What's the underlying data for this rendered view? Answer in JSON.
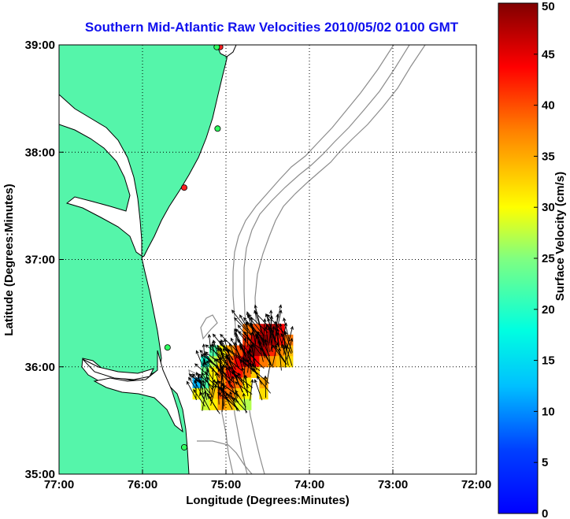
{
  "chart_data": {
    "type": "heatmap",
    "title": "Southern Mid-Atlantic Raw Velocities 2010/05/02 0100 GMT",
    "xlabel": "Longitude (Degrees:Minutes)",
    "ylabel": "Latitude (Degrees:Minutes)",
    "x_ticks": [
      "77:00",
      "76:00",
      "75:00",
      "74:00",
      "73:00",
      "72:00"
    ],
    "y_ticks": [
      "39:00",
      "38:00",
      "37:00",
      "36:00",
      "35:00"
    ],
    "xlim": [
      -77,
      -72
    ],
    "ylim": [
      35,
      39
    ],
    "grid": true,
    "colorbar": {
      "label": "Surface Velocity (cm/s)",
      "ticks": [
        "0",
        "5",
        "10",
        "15",
        "20",
        "25",
        "30",
        "35",
        "40",
        "45",
        "50"
      ],
      "range": [
        0,
        50
      ]
    },
    "colors": {
      "land": "#55f5aa",
      "contour": "#8c8c8c",
      "title": "#1010ee"
    },
    "stations": [
      {
        "lon": -75.07,
        "lat": 38.98,
        "color": "#ff2020"
      },
      {
        "lon": -75.11,
        "lat": 38.98,
        "color": "#30ff60"
      },
      {
        "lon": -75.1,
        "lat": 38.22,
        "color": "#30ff60"
      },
      {
        "lon": -75.5,
        "lat": 37.67,
        "color": "#ff2020"
      },
      {
        "lon": -75.7,
        "lat": 36.18,
        "color": "#30ff60"
      },
      {
        "lon": -75.5,
        "lat": 35.25,
        "color": "#30ff60"
      }
    ],
    "velocity_cells": [
      {
        "lon": -74.55,
        "lat": 36.35,
        "speed": 46
      },
      {
        "lon": -74.45,
        "lat": 36.35,
        "speed": 48
      },
      {
        "lon": -74.35,
        "lat": 36.35,
        "speed": 44
      },
      {
        "lon": -74.65,
        "lat": 36.35,
        "speed": 40
      },
      {
        "lon": -74.75,
        "lat": 36.35,
        "speed": 38
      },
      {
        "lon": -74.75,
        "lat": 36.25,
        "speed": 41
      },
      {
        "lon": -74.65,
        "lat": 36.25,
        "speed": 47
      },
      {
        "lon": -74.55,
        "lat": 36.25,
        "speed": 50
      },
      {
        "lon": -74.45,
        "lat": 36.25,
        "speed": 48
      },
      {
        "lon": -74.35,
        "lat": 36.25,
        "speed": 43
      },
      {
        "lon": -74.25,
        "lat": 36.25,
        "speed": 38
      },
      {
        "lon": -75.15,
        "lat": 36.15,
        "speed": 22
      },
      {
        "lon": -75.05,
        "lat": 36.15,
        "speed": 30
      },
      {
        "lon": -74.95,
        "lat": 36.15,
        "speed": 36
      },
      {
        "lon": -74.85,
        "lat": 36.15,
        "speed": 40
      },
      {
        "lon": -74.75,
        "lat": 36.15,
        "speed": 46
      },
      {
        "lon": -74.65,
        "lat": 36.15,
        "speed": 49
      },
      {
        "lon": -74.55,
        "lat": 36.15,
        "speed": 47
      },
      {
        "lon": -74.45,
        "lat": 36.15,
        "speed": 42
      },
      {
        "lon": -74.35,
        "lat": 36.15,
        "speed": 37
      },
      {
        "lon": -74.25,
        "lat": 36.15,
        "speed": 34
      },
      {
        "lon": -75.25,
        "lat": 36.05,
        "speed": 19
      },
      {
        "lon": -75.15,
        "lat": 36.05,
        "speed": 27
      },
      {
        "lon": -75.05,
        "lat": 36.05,
        "speed": 33
      },
      {
        "lon": -74.95,
        "lat": 36.05,
        "speed": 40
      },
      {
        "lon": -74.85,
        "lat": 36.05,
        "speed": 45
      },
      {
        "lon": -74.75,
        "lat": 36.05,
        "speed": 48
      },
      {
        "lon": -74.65,
        "lat": 36.05,
        "speed": 44
      },
      {
        "lon": -74.55,
        "lat": 36.05,
        "speed": 38
      },
      {
        "lon": -74.45,
        "lat": 36.05,
        "speed": 36
      },
      {
        "lon": -74.35,
        "lat": 36.05,
        "speed": 34
      },
      {
        "lon": -74.25,
        "lat": 36.05,
        "speed": 32
      },
      {
        "lon": -75.25,
        "lat": 35.95,
        "speed": 24
      },
      {
        "lon": -75.15,
        "lat": 35.95,
        "speed": 31
      },
      {
        "lon": -75.05,
        "lat": 35.95,
        "speed": 38
      },
      {
        "lon": -74.95,
        "lat": 35.95,
        "speed": 44
      },
      {
        "lon": -74.85,
        "lat": 35.95,
        "speed": 43
      },
      {
        "lon": -74.75,
        "lat": 35.95,
        "speed": 39
      },
      {
        "lon": -74.65,
        "lat": 35.95,
        "speed": 33
      },
      {
        "lon": -75.35,
        "lat": 35.85,
        "speed": 12
      },
      {
        "lon": -75.25,
        "lat": 35.85,
        "speed": 22
      },
      {
        "lon": -75.15,
        "lat": 35.85,
        "speed": 30
      },
      {
        "lon": -75.05,
        "lat": 35.85,
        "speed": 37
      },
      {
        "lon": -74.95,
        "lat": 35.85,
        "speed": 41
      },
      {
        "lon": -74.85,
        "lat": 35.85,
        "speed": 38
      },
      {
        "lon": -74.75,
        "lat": 35.85,
        "speed": 31
      },
      {
        "lon": -74.55,
        "lat": 35.85,
        "speed": 35
      },
      {
        "lon": -75.35,
        "lat": 35.75,
        "speed": 30
      },
      {
        "lon": -75.25,
        "lat": 35.75,
        "speed": 27
      },
      {
        "lon": -75.15,
        "lat": 35.75,
        "speed": 33
      },
      {
        "lon": -75.05,
        "lat": 35.75,
        "speed": 40
      },
      {
        "lon": -74.95,
        "lat": 35.75,
        "speed": 38
      },
      {
        "lon": -74.85,
        "lat": 35.75,
        "speed": 33
      },
      {
        "lon": -74.75,
        "lat": 35.75,
        "speed": 30
      },
      {
        "lon": -74.55,
        "lat": 35.75,
        "speed": 32
      },
      {
        "lon": -75.25,
        "lat": 35.65,
        "speed": 28
      },
      {
        "lon": -75.15,
        "lat": 35.65,
        "speed": 31
      },
      {
        "lon": -75.05,
        "lat": 35.65,
        "speed": 36
      },
      {
        "lon": -74.95,
        "lat": 35.65,
        "speed": 34
      },
      {
        "lon": -74.85,
        "lat": 35.65,
        "speed": 29
      },
      {
        "lon": -74.75,
        "lat": 35.65,
        "speed": 27
      }
    ]
  }
}
